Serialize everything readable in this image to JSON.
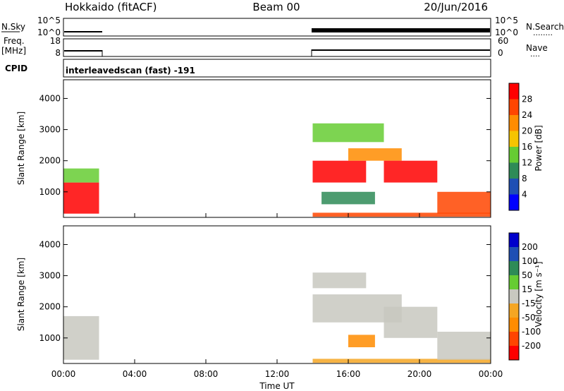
{
  "header": {
    "site": "Hokkaido (fitACF)",
    "beam": "Beam 00",
    "date": "20/Jun/2016"
  },
  "strip_labels": {
    "nsky": "N.Sky",
    "freq_line1": "Freq.",
    "freq_line2": "[MHz]",
    "cpid": "CPID",
    "nsearch": "N.Search",
    "nsearch_dots": "........",
    "nave": "Nave",
    "nave_dots": "...."
  },
  "nsky_ticks": [
    "10^5",
    "10^0"
  ],
  "nsearch_ticks": [
    "10^5",
    "10^0"
  ],
  "freq_ticks": [
    "18",
    "8"
  ],
  "nave_ticks": [
    "60",
    "0"
  ],
  "cpid_text": "interleavedscan (fast) -191",
  "colors": {
    "power": [
      "#0000ff",
      "#1f4fb4",
      "#2e8b57",
      "#66cc33",
      "#f5c400",
      "#ff8c00",
      "#ff4500",
      "#ff0000"
    ],
    "velocity": [
      "#ff0000",
      "#ff4500",
      "#ff8c00",
      "#f5a623",
      "#c8c8c0",
      "#66cc33",
      "#2e8b57",
      "#1f4fb4",
      "#0000cc"
    ]
  },
  "power_colorbar": {
    "label": "Power [dB]",
    "ticks": [
      "4",
      "8",
      "12",
      "16",
      "20",
      "24",
      "28"
    ]
  },
  "velocity_colorbar": {
    "label": "Velocity [m s⁻¹]",
    "ticks": [
      "-200",
      "-100",
      "-50",
      "-15",
      "15",
      "50",
      "100",
      "200"
    ]
  },
  "x_axis": {
    "label": "Time UT",
    "ticks": [
      "00:00",
      "04:00",
      "08:00",
      "12:00",
      "16:00",
      "20:00",
      "00:00"
    ]
  },
  "chart_data": [
    {
      "type": "heatmap",
      "name_key": "power",
      "ylabel": "Slant Range [km]",
      "ytick_labels": [
        "1000",
        "2000",
        "3000",
        "4000"
      ],
      "y_ticks": [
        1000,
        2000,
        3000,
        4000
      ],
      "ylim": [
        180,
        4600
      ],
      "xlim_hours": [
        0,
        24
      ],
      "x_tick_hours": [
        0,
        4,
        8,
        12,
        16,
        20,
        24
      ],
      "data_gaps_hours": [
        [
          2,
          14
        ]
      ],
      "regions": [
        {
          "t": [
            0,
            2
          ],
          "r": [
            300,
            1300
          ],
          "c": 7
        },
        {
          "t": [
            0,
            2
          ],
          "r": [
            1300,
            1750
          ],
          "c": 3
        },
        {
          "t": [
            14,
            24
          ],
          "r": [
            200,
            330
          ],
          "c": 6
        },
        {
          "t": [
            14,
            17
          ],
          "r": [
            1300,
            2000
          ],
          "c": 7
        },
        {
          "t": [
            16,
            19
          ],
          "r": [
            2000,
            2400
          ],
          "c": 5
        },
        {
          "t": [
            18,
            21
          ],
          "r": [
            1300,
            2000
          ],
          "c": 7
        },
        {
          "t": [
            14.5,
            17.5
          ],
          "r": [
            600,
            1000
          ],
          "c": 2
        },
        {
          "t": [
            21,
            24
          ],
          "r": [
            300,
            1000
          ],
          "c": 6
        },
        {
          "t": [
            14,
            18
          ],
          "r": [
            2600,
            3200
          ],
          "c": 3
        }
      ]
    },
    {
      "type": "heatmap",
      "name_key": "velocity",
      "ylabel": "Slant Range [km]",
      "ytick_labels": [
        "1000",
        "2000",
        "3000",
        "4000"
      ],
      "y_ticks": [
        1000,
        2000,
        3000,
        4000
      ],
      "ylim": [
        180,
        4600
      ],
      "xlim_hours": [
        0,
        24
      ],
      "x_tick_hours": [
        0,
        4,
        8,
        12,
        16,
        20,
        24
      ],
      "data_gaps_hours": [
        [
          2,
          14
        ]
      ],
      "regions": [
        {
          "t": [
            0,
            2
          ],
          "r": [
            300,
            1700
          ],
          "c": 4
        },
        {
          "t": [
            14,
            24
          ],
          "r": [
            200,
            330
          ],
          "c": 3
        },
        {
          "t": [
            14,
            19
          ],
          "r": [
            1500,
            2400
          ],
          "c": 4
        },
        {
          "t": [
            16,
            17.5
          ],
          "r": [
            700,
            1100
          ],
          "c": 2
        },
        {
          "t": [
            18,
            21
          ],
          "r": [
            1000,
            2000
          ],
          "c": 4
        },
        {
          "t": [
            21,
            24
          ],
          "r": [
            300,
            1200
          ],
          "c": 4
        },
        {
          "t": [
            14,
            17
          ],
          "r": [
            2600,
            3100
          ],
          "c": 4
        }
      ]
    }
  ]
}
